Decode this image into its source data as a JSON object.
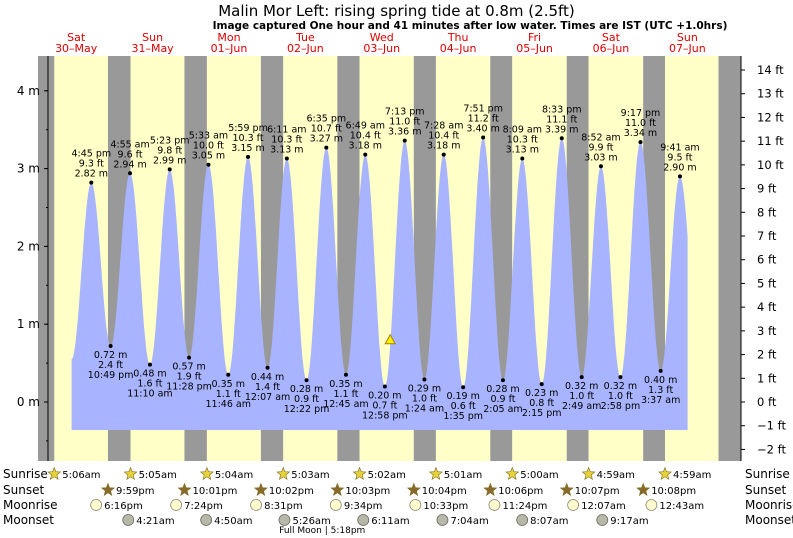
{
  "title": "Malin Mor Left: rising  spring tide at 0.8m (2.5ft)",
  "subtitle": "Image captured One hour and 41 minutes after low water. Times are IST (UTC +1.0hrs)",
  "colors": {
    "tide_fill": "#a8b4ff",
    "day_band": "#ffffc8",
    "night_band": "#999999",
    "background": "#eeeeee",
    "day_label": "#e00000",
    "marker": "#ffee00"
  },
  "days": [
    {
      "name": "Sat",
      "date": "30–May"
    },
    {
      "name": "Sun",
      "date": "31–May"
    },
    {
      "name": "Mon",
      "date": "01–Jun"
    },
    {
      "name": "Tue",
      "date": "02–Jun"
    },
    {
      "name": "Wed",
      "date": "03–Jun"
    },
    {
      "name": "Thu",
      "date": "04–Jun"
    },
    {
      "name": "Fri",
      "date": "05–Jun"
    },
    {
      "name": "Sat",
      "date": "06–Jun"
    },
    {
      "name": "Sun",
      "date": "07–Jun"
    }
  ],
  "chart_data": {
    "type": "area",
    "title": "Malin Mor Left: rising  spring tide at 0.8m (2.5ft)",
    "ylabel_left_unit": "m",
    "ylabel_right_unit": "ft",
    "ylim_m": [
      -0.6,
      4.3
    ],
    "yticks_left": [
      "0 m",
      "1 m",
      "2 m",
      "3 m",
      "4 m"
    ],
    "yticks_right": [
      "−2 ft",
      "−1 ft",
      "0 ft",
      "1 ft",
      "2 ft",
      "3 ft",
      "4 ft",
      "5 ft",
      "6 ft",
      "7 ft",
      "8 ft",
      "9 ft",
      "10 ft",
      "11 ft",
      "12 ft",
      "13 ft",
      "14 ft"
    ],
    "grid": false,
    "x_unit": "hours since 30-May 00:00 IST",
    "current_level": {
      "time": "03-Jun 2:39 pm",
      "height_m": 0.8
    },
    "series": [
      {
        "name": "tide",
        "points": [
          {
            "time": "4:45 pm",
            "hours": 16.75,
            "m": 2.82,
            "ft": "9.3 ft",
            "high": true
          },
          {
            "time": "10:49 pm",
            "hours": 22.82,
            "m": 0.72,
            "ft": "2.4 ft",
            "high": false
          },
          {
            "time": "4:55 am",
            "hours": 28.92,
            "m": 2.94,
            "ft": "9.6 ft",
            "high": true
          },
          {
            "time": "11:10 am",
            "hours": 35.17,
            "m": 0.48,
            "ft": "1.6 ft",
            "high": false
          },
          {
            "time": "5:23 pm",
            "hours": 41.38,
            "m": 2.99,
            "ft": "9.8 ft",
            "high": true
          },
          {
            "time": "11:28 pm",
            "hours": 47.47,
            "m": 0.57,
            "ft": "1.9 ft",
            "high": false
          },
          {
            "time": "5:33 am",
            "hours": 53.55,
            "m": 3.05,
            "ft": "10.0 ft",
            "high": true
          },
          {
            "time": "11:46 am",
            "hours": 59.77,
            "m": 0.35,
            "ft": "1.1 ft",
            "high": false
          },
          {
            "time": "5:59 pm",
            "hours": 65.98,
            "m": 3.15,
            "ft": "10.3 ft",
            "high": true
          },
          {
            "time": "12:07 am",
            "hours": 72.12,
            "m": 0.44,
            "ft": "1.4 ft",
            "high": false
          },
          {
            "time": "6:11 am",
            "hours": 78.18,
            "m": 3.13,
            "ft": "10.3 ft",
            "high": true
          },
          {
            "time": "12:22 pm",
            "hours": 84.37,
            "m": 0.28,
            "ft": "0.9 ft",
            "high": false
          },
          {
            "time": "6:35 pm",
            "hours": 90.58,
            "m": 3.27,
            "ft": "10.7 ft",
            "high": true
          },
          {
            "time": "12:45 am",
            "hours": 96.75,
            "m": 0.35,
            "ft": "1.1 ft",
            "high": false
          },
          {
            "time": "6:49 am",
            "hours": 102.82,
            "m": 3.18,
            "ft": "10.4 ft",
            "high": true
          },
          {
            "time": "12:58 pm",
            "hours": 108.97,
            "m": 0.2,
            "ft": "0.7 ft",
            "high": false
          },
          {
            "time": "7:13 pm",
            "hours": 115.22,
            "m": 3.36,
            "ft": "11.0 ft",
            "high": true
          },
          {
            "time": "1:24 am",
            "hours": 121.4,
            "m": 0.29,
            "ft": "1.0 ft",
            "high": false
          },
          {
            "time": "7:28 am",
            "hours": 127.47,
            "m": 3.18,
            "ft": "10.4 ft",
            "high": true
          },
          {
            "time": "1:35 pm",
            "hours": 133.58,
            "m": 0.19,
            "ft": "0.6 ft",
            "high": false
          },
          {
            "time": "7:51 pm",
            "hours": 139.85,
            "m": 3.4,
            "ft": "11.2 ft",
            "high": true
          },
          {
            "time": "2:05 am",
            "hours": 146.08,
            "m": 0.28,
            "ft": "0.9 ft",
            "high": false
          },
          {
            "time": "8:09 am",
            "hours": 152.15,
            "m": 3.13,
            "ft": "10.3 ft",
            "high": true
          },
          {
            "time": "2:15 pm",
            "hours": 158.25,
            "m": 0.23,
            "ft": "0.8 ft",
            "high": false
          },
          {
            "time": "8:33 pm",
            "hours": 164.55,
            "m": 3.39,
            "ft": "11.1 ft",
            "high": true
          },
          {
            "time": "2:49 am",
            "hours": 170.82,
            "m": 0.32,
            "ft": "1.0 ft",
            "high": false
          },
          {
            "time": "8:52 am",
            "hours": 176.87,
            "m": 3.03,
            "ft": "9.9 ft",
            "high": true
          },
          {
            "time": "2:58 pm",
            "hours": 182.97,
            "m": 0.32,
            "ft": "1.0 ft",
            "high": false
          },
          {
            "time": "9:17 pm",
            "hours": 189.28,
            "m": 3.34,
            "ft": "11.0 ft",
            "high": true
          },
          {
            "time": "3:37 am",
            "hours": 195.62,
            "m": 0.4,
            "ft": "1.3 ft",
            "high": false
          },
          {
            "time": "9:41 am",
            "hours": 201.68,
            "m": 2.9,
            "ft": "9.5 ft",
            "high": true
          }
        ]
      }
    ],
    "sun": [
      {
        "sunrise": "5:06am",
        "sunset": "9:59pm"
      },
      {
        "sunrise": "5:05am",
        "sunset": "10:01pm"
      },
      {
        "sunrise": "5:04am",
        "sunset": "10:02pm"
      },
      {
        "sunrise": "5:03am",
        "sunset": "10:03pm"
      },
      {
        "sunrise": "5:02am",
        "sunset": "10:04pm"
      },
      {
        "sunrise": "5:01am",
        "sunset": "10:06pm"
      },
      {
        "sunrise": "5:00am",
        "sunset": "10:07pm"
      },
      {
        "sunrise": "4:59am",
        "sunset": "10:08pm"
      },
      {
        "sunrise": "4:59am",
        "sunset": ""
      }
    ],
    "moonrise": [
      "6:16pm",
      "7:24pm",
      "8:31pm",
      "9:34pm",
      "10:33pm",
      "11:24pm",
      "12:07am",
      "12:43am"
    ],
    "moonset": [
      "4:21am",
      "4:50am",
      "5:26am",
      "6:11am",
      "7:04am",
      "8:07am",
      "9:17am"
    ],
    "full_moon": "Full Moon | 5:18pm",
    "row_labels": [
      "Sunrise",
      "Sunset",
      "Moonrise",
      "Moonset"
    ]
  }
}
